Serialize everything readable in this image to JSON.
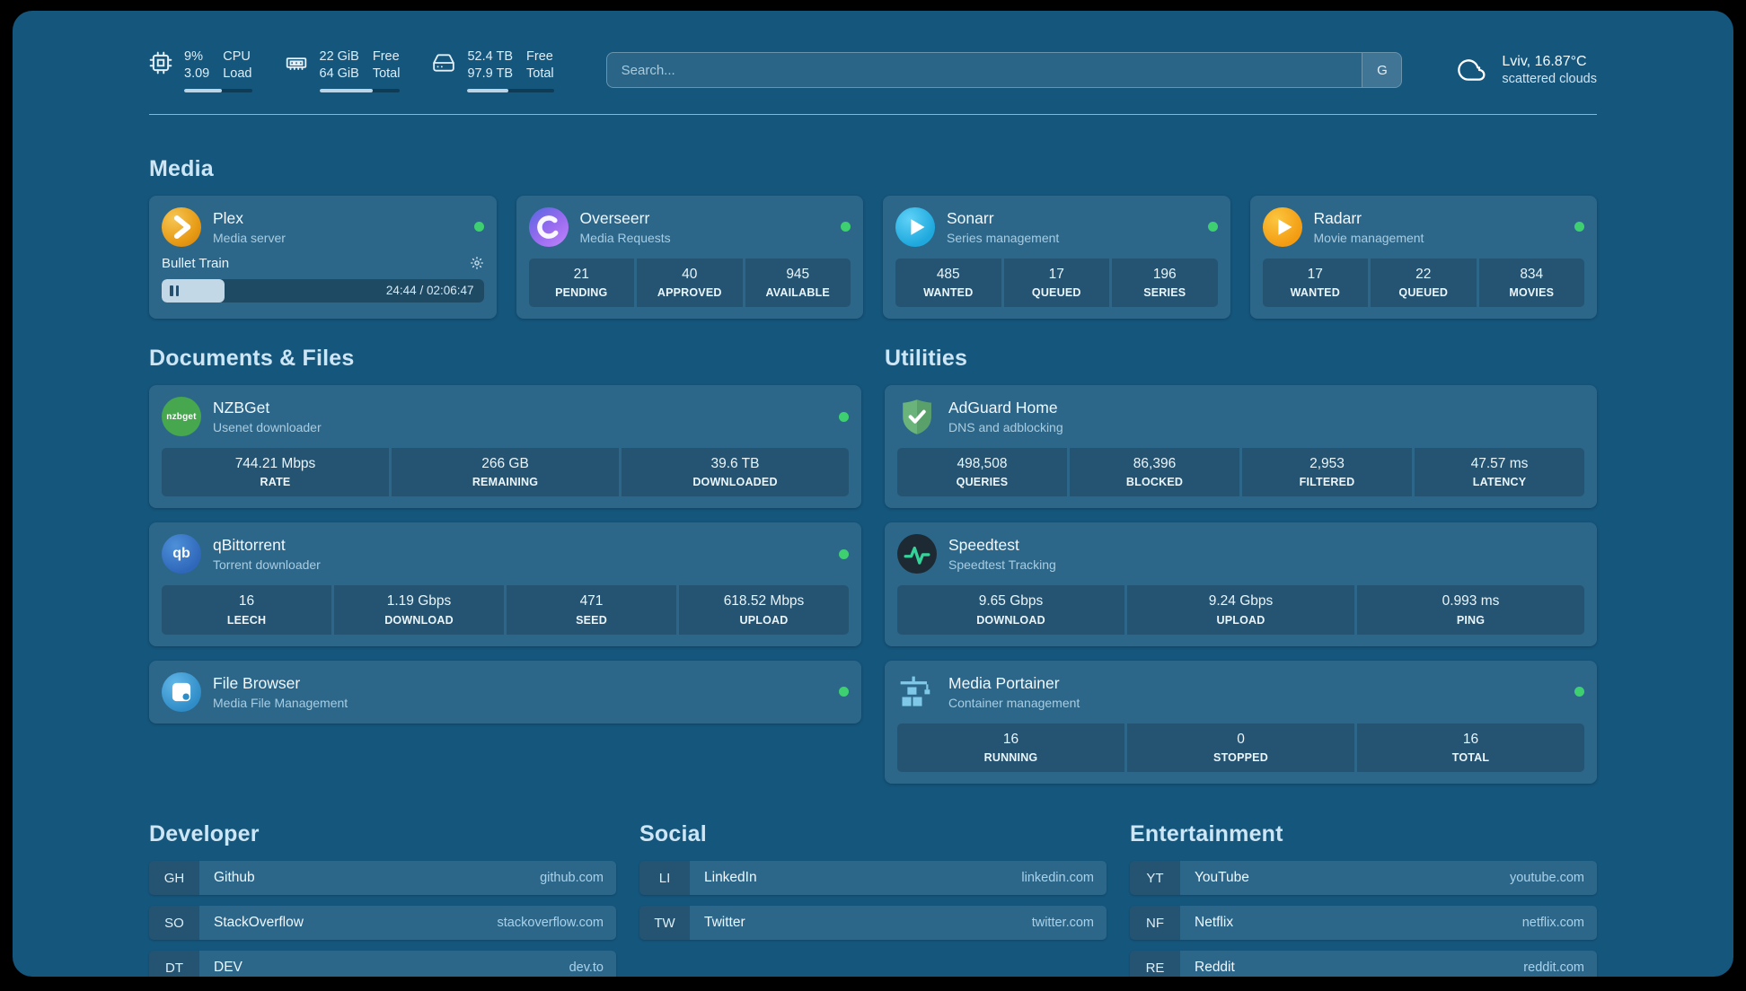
{
  "colors": {
    "background": "#15567d",
    "card": "rgba(255,255,255,0.10)",
    "status_online": "#3ecf71",
    "progress_fill": "#b9d5e7"
  },
  "topbar": {
    "cpu": {
      "icon": "cpu-icon",
      "values": [
        "9%",
        "3.09"
      ],
      "labels": [
        "CPU",
        "Load"
      ],
      "progress_pct": 55
    },
    "memory": {
      "icon": "memory-icon",
      "values": [
        "22 GiB",
        "64 GiB"
      ],
      "labels": [
        "Free",
        "Total"
      ],
      "progress_pct": 66
    },
    "disk": {
      "icon": "disk-icon",
      "values": [
        "52.4 TB",
        "97.9 TB"
      ],
      "labels": [
        "Free",
        "Total"
      ],
      "progress_pct": 47
    },
    "search": {
      "placeholder": "Search...",
      "button_label": "G"
    },
    "weather": {
      "icon": "cloud-icon",
      "location": "Lviv, 16.87°C",
      "condition": "scattered clouds"
    }
  },
  "sections": {
    "media": {
      "title": "Media",
      "plex": {
        "icon": "plex-icon",
        "title": "Plex",
        "subtitle": "Media server",
        "online": true,
        "now_playing": {
          "title": "Bullet Train",
          "time_display": "24:44 / 02:06:47",
          "progress_pct": 19.5
        }
      },
      "overseerr": {
        "icon": "overseerr-icon",
        "title": "Overseerr",
        "subtitle": "Media Requests",
        "online": true,
        "stats": [
          {
            "value": "21",
            "label": "PENDING"
          },
          {
            "value": "40",
            "label": "APPROVED"
          },
          {
            "value": "945",
            "label": "AVAILABLE"
          }
        ]
      },
      "sonarr": {
        "icon": "sonarr-icon",
        "title": "Sonarr",
        "subtitle": "Series management",
        "online": true,
        "stats": [
          {
            "value": "485",
            "label": "WANTED"
          },
          {
            "value": "17",
            "label": "QUEUED"
          },
          {
            "value": "196",
            "label": "SERIES"
          }
        ]
      },
      "radarr": {
        "icon": "radarr-icon",
        "title": "Radarr",
        "subtitle": "Movie management",
        "online": true,
        "stats": [
          {
            "value": "17",
            "label": "WANTED"
          },
          {
            "value": "22",
            "label": "QUEUED"
          },
          {
            "value": "834",
            "label": "MOVIES"
          }
        ]
      }
    },
    "documents": {
      "title": "Documents & Files",
      "nzbget": {
        "icon": "nzbget-icon",
        "icon_text": "nzbget",
        "title": "NZBGet",
        "subtitle": "Usenet downloader",
        "online": true,
        "stats": [
          {
            "value": "744.21 Mbps",
            "label": "RATE"
          },
          {
            "value": "266 GB",
            "label": "REMAINING"
          },
          {
            "value": "39.6 TB",
            "label": "DOWNLOADED"
          }
        ]
      },
      "qbittorrent": {
        "icon": "qbittorrent-icon",
        "icon_text": "qb",
        "title": "qBittorrent",
        "subtitle": "Torrent downloader",
        "online": true,
        "stats": [
          {
            "value": "16",
            "label": "LEECH"
          },
          {
            "value": "1.19 Gbps",
            "label": "DOWNLOAD"
          },
          {
            "value": "471",
            "label": "SEED"
          },
          {
            "value": "618.52 Mbps",
            "label": "UPLOAD"
          }
        ]
      },
      "filebrowser": {
        "icon": "filebrowser-icon",
        "title": "File Browser",
        "subtitle": "Media File Management",
        "online": true
      }
    },
    "utilities": {
      "title": "Utilities",
      "adguard": {
        "icon": "adguard-icon",
        "title": "AdGuard Home",
        "subtitle": "DNS and adblocking",
        "stats": [
          {
            "value": "498,508",
            "label": "QUERIES"
          },
          {
            "value": "86,396",
            "label": "BLOCKED"
          },
          {
            "value": "2,953",
            "label": "FILTERED"
          },
          {
            "value": "47.57 ms",
            "label": "LATENCY"
          }
        ]
      },
      "speedtest": {
        "icon": "speedtest-icon",
        "title": "Speedtest",
        "subtitle": "Speedtest Tracking",
        "stats": [
          {
            "value": "9.65 Gbps",
            "label": "DOWNLOAD"
          },
          {
            "value": "9.24 Gbps",
            "label": "UPLOAD"
          },
          {
            "value": "0.993 ms",
            "label": "PING"
          }
        ]
      },
      "portainer": {
        "icon": "portainer-icon",
        "title": "Media Portainer",
        "subtitle": "Container management",
        "online": true,
        "stats": [
          {
            "value": "16",
            "label": "RUNNING"
          },
          {
            "value": "0",
            "label": "STOPPED"
          },
          {
            "value": "16",
            "label": "TOTAL"
          }
        ]
      }
    }
  },
  "bookmarks": {
    "developer": {
      "title": "Developer",
      "items": [
        {
          "abbr": "GH",
          "name": "Github",
          "domain": "github.com"
        },
        {
          "abbr": "SO",
          "name": "StackOverflow",
          "domain": "stackoverflow.com"
        },
        {
          "abbr": "DT",
          "name": "DEV",
          "domain": "dev.to"
        }
      ]
    },
    "social": {
      "title": "Social",
      "items": [
        {
          "abbr": "LI",
          "name": "LinkedIn",
          "domain": "linkedin.com"
        },
        {
          "abbr": "TW",
          "name": "Twitter",
          "domain": "twitter.com"
        }
      ]
    },
    "entertainment": {
      "title": "Entertainment",
      "items": [
        {
          "abbr": "YT",
          "name": "YouTube",
          "domain": "youtube.com"
        },
        {
          "abbr": "NF",
          "name": "Netflix",
          "domain": "netflix.com"
        },
        {
          "abbr": "RE",
          "name": "Reddit",
          "domain": "reddit.com"
        }
      ]
    }
  }
}
